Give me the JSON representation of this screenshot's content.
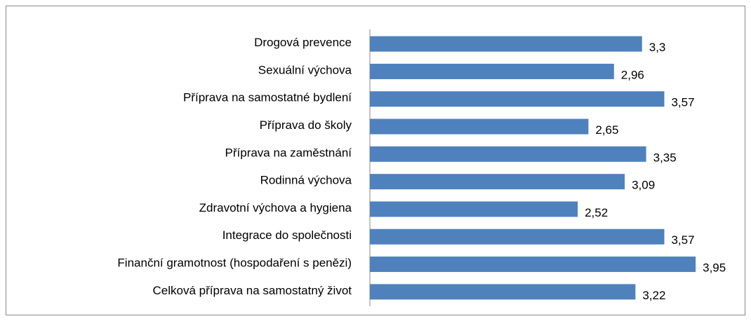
{
  "chart_data": {
    "type": "barh",
    "categories": [
      "Drogová prevence",
      "Sexuální výchova",
      "Příprava na samostatné bydlení",
      "Příprava do školy",
      "Příprava na zaměstnání",
      "Rodinná výchova",
      "Zdravotní výchova a hygiena",
      "Integrace do společnosti",
      "Finanční gramotnost (hospodaření s penězi)",
      "Celková příprava na samostatný život"
    ],
    "values": [
      3.3,
      2.96,
      3.57,
      2.65,
      3.35,
      3.09,
      2.52,
      3.57,
      3.95,
      3.22
    ],
    "value_labels": [
      "3,3",
      "2,96",
      "3,57",
      "2,65",
      "3,35",
      "3,09",
      "2,52",
      "3,57",
      "3,95",
      "3,22"
    ],
    "color": "#4f81bd"
  }
}
